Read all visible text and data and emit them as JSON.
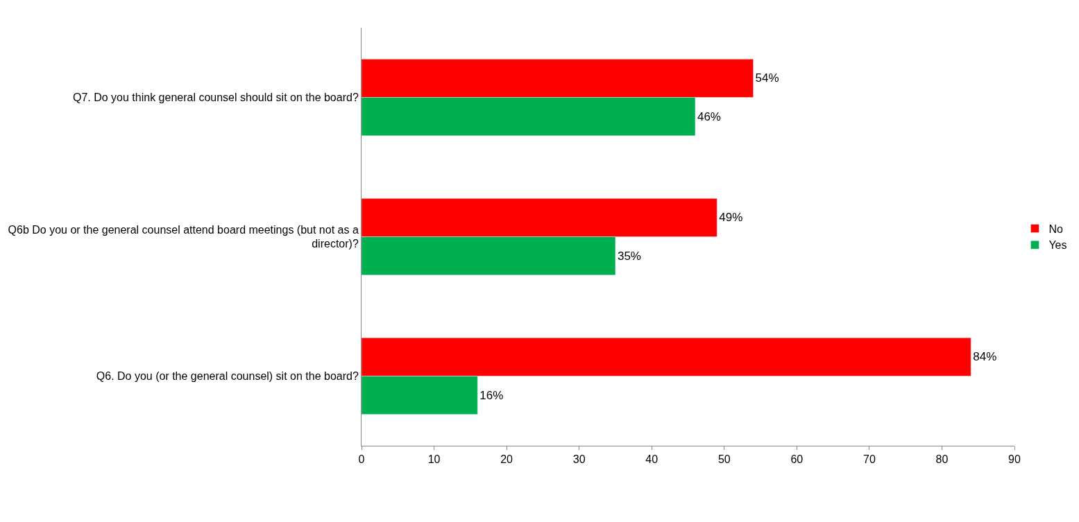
{
  "chart_data": {
    "type": "bar",
    "orientation": "horizontal",
    "categories": [
      "Q7. Do you think general counsel should sit on the board?",
      "Q6b Do you or the general counsel attend board meetings (but not as a director)?",
      "Q6. Do you (or the general counsel) sit on the board?"
    ],
    "series": [
      {
        "name": "No",
        "color": "#ff0000",
        "values": [
          54,
          49,
          84
        ],
        "value_labels": [
          "54%",
          "49%",
          "84%"
        ]
      },
      {
        "name": "Yes",
        "color": "#00b050",
        "values": [
          46,
          35,
          16
        ],
        "value_labels": [
          "46%",
          "35%",
          "16%"
        ]
      }
    ],
    "xlim": [
      0,
      90
    ],
    "xticks": [
      0,
      10,
      20,
      30,
      40,
      50,
      60,
      70,
      80,
      90
    ],
    "legend": "right"
  }
}
